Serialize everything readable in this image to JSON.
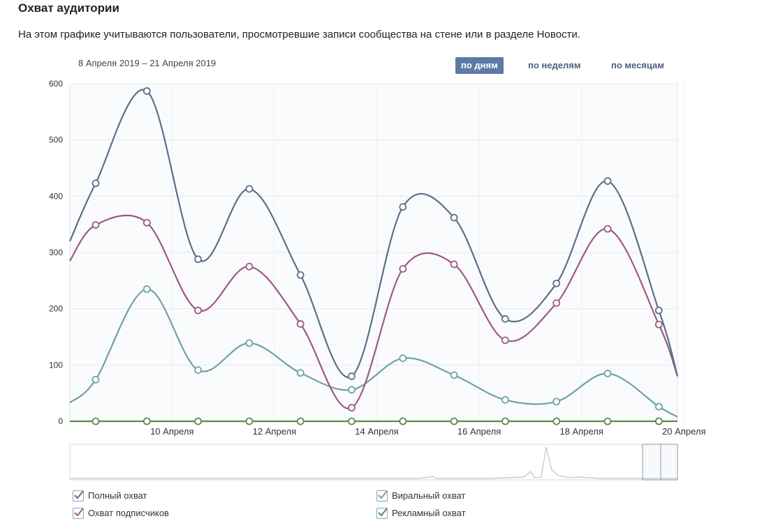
{
  "header": {
    "title": "Охват аудитории",
    "description": "На этом графике учитываются пользователи, просмотревшие записи сообщества на стене или в разделе Новости."
  },
  "controls": {
    "date_range": "8 Апреля 2019 – 21 Апреля 2019",
    "periods": [
      {
        "label": "по дням",
        "active": true
      },
      {
        "label": "по неделям",
        "active": false
      },
      {
        "label": "по месяцам",
        "active": false
      }
    ]
  },
  "legend": [
    {
      "label": "Полный охват",
      "color": "#5c6e8a",
      "checked": true
    },
    {
      "label": "Охват подписчиков",
      "color": "#9c5a85",
      "checked": true
    },
    {
      "label": "Виральный охват",
      "color": "#6ea3a3",
      "checked": true
    },
    {
      "label": "Рекламный охват",
      "color": "#5b8c4a",
      "checked": true
    }
  ],
  "chart_data": {
    "type": "line",
    "title": "",
    "xlabel": "",
    "ylabel": "",
    "ylim": [
      0,
      600
    ],
    "yticks": [
      0,
      100,
      200,
      300,
      400,
      500,
      600
    ],
    "xtick_labels": [
      "10 Апреля",
      "12 Апреля",
      "14 Апреля",
      "16 Апреля",
      "18 Апреля",
      "20 Апреля"
    ],
    "x": [
      "9 Апреля",
      "10 Апреля",
      "11 Апреля",
      "12 Апреля",
      "13 Апреля",
      "14 Апреля",
      "15 Апреля",
      "16 Апреля",
      "17 Апреля",
      "18 Апреля",
      "19 Апреля",
      "20 Апреля"
    ],
    "series": [
      {
        "name": "Полный охват",
        "color": "#5c6e8a",
        "start": 320,
        "end": 80,
        "values": [
          423,
          587,
          288,
          413,
          260,
          80,
          381,
          362,
          182,
          245,
          427,
          197
        ]
      },
      {
        "name": "Охват подписчиков",
        "color": "#9c5a85",
        "start": 285,
        "end": 80,
        "values": [
          349,
          353,
          197,
          275,
          173,
          24,
          271,
          279,
          144,
          210,
          342,
          172
        ]
      },
      {
        "name": "Виральный охват",
        "color": "#6ea3a3",
        "start": 33,
        "end": 8,
        "values": [
          74,
          235,
          91,
          139,
          86,
          56,
          112,
          82,
          38,
          35,
          85,
          26
        ]
      },
      {
        "name": "Рекламный охват",
        "color": "#5b8c4a",
        "start": 0,
        "end": 0,
        "values": [
          0,
          0,
          0,
          0,
          0,
          0,
          0,
          0,
          0,
          0,
          0,
          0
        ]
      }
    ]
  }
}
